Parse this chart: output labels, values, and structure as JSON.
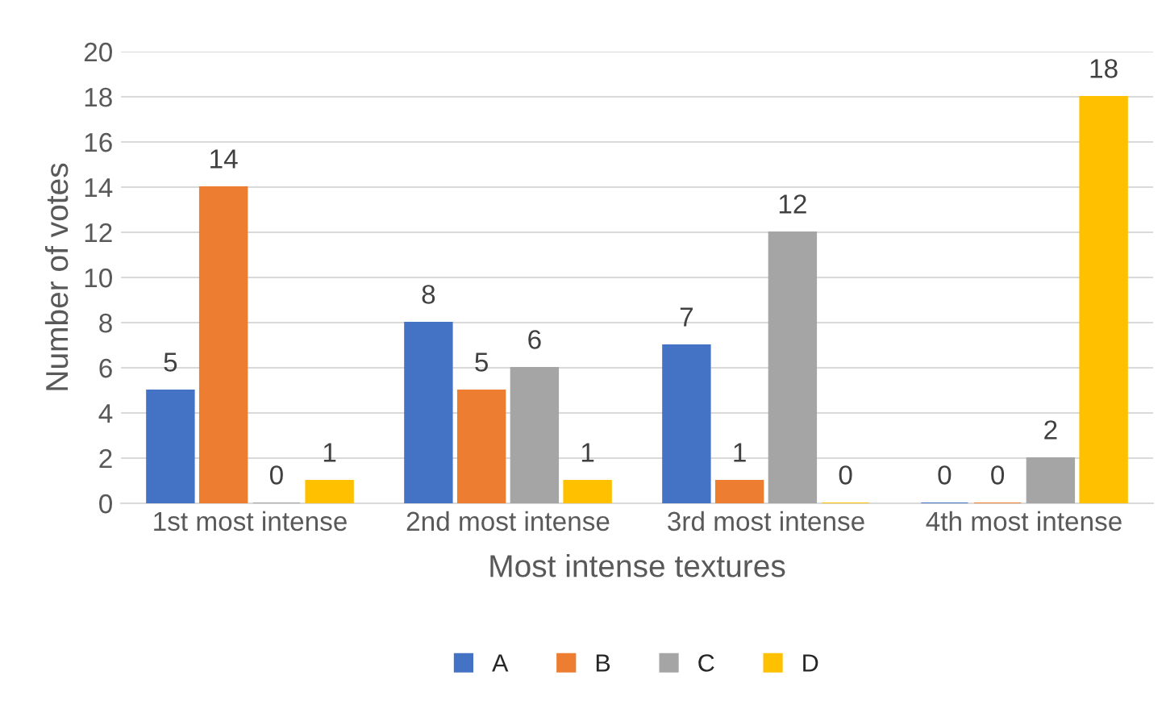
{
  "chart_data": {
    "type": "bar",
    "xlabel": "Most intense textures",
    "ylabel": "Number of votes",
    "categories": [
      "1st most intense",
      "2nd most intense",
      "3rd most intense",
      "4th most intense"
    ],
    "series": [
      {
        "name": "A",
        "color": "#4472c4",
        "values": [
          5,
          8,
          7,
          0
        ]
      },
      {
        "name": "B",
        "color": "#ed7d31",
        "values": [
          14,
          5,
          1,
          0
        ]
      },
      {
        "name": "C",
        "color": "#a5a5a5",
        "values": [
          0,
          6,
          12,
          2
        ]
      },
      {
        "name": "D",
        "color": "#ffc000",
        "values": [
          1,
          1,
          0,
          18
        ]
      }
    ],
    "ylim": [
      0,
      20
    ],
    "yticks": [
      0,
      2,
      4,
      6,
      8,
      10,
      12,
      14,
      16,
      18,
      20
    ],
    "grid": "y",
    "legend": "bottom",
    "data_labels": true
  }
}
